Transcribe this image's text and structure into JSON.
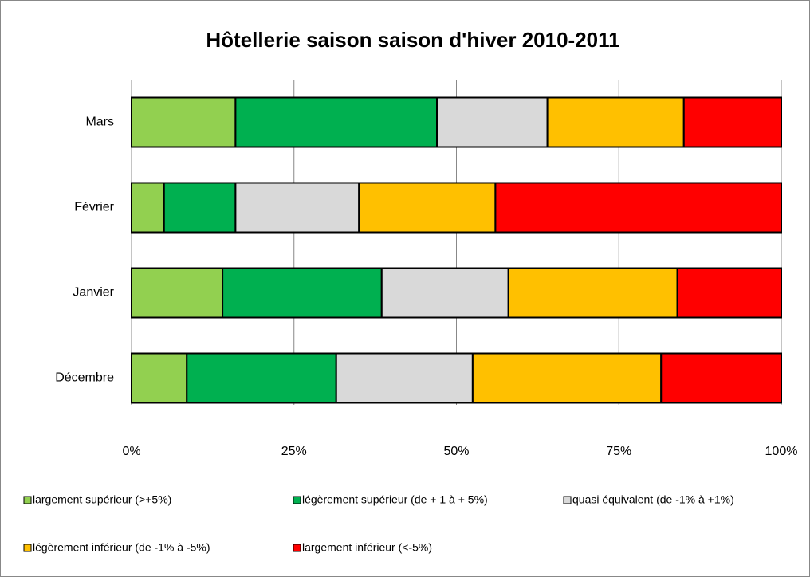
{
  "chart_data": {
    "type": "stacked-horizontal-bar",
    "title": "Hôtellerie saison saison d'hiver 2010-2011",
    "categories": [
      "Mars",
      "Février",
      "Janvier",
      "Décembre"
    ],
    "series": [
      {
        "name": "largement supérieur (>+5%)",
        "color": "#92d050",
        "values": [
          16,
          5,
          14,
          8.5
        ]
      },
      {
        "name": "légèrement supérieur (de + 1 à + 5%)",
        "color": "#00b050",
        "values": [
          31,
          11,
          24.5,
          23
        ]
      },
      {
        "name": "quasi équivalent (de  -1% à +1%)",
        "color": "#d9d9d9",
        "values": [
          17,
          19,
          19.5,
          21
        ]
      },
      {
        "name": "légèrement inférieur (de -1% à -5%)",
        "color": "#ffc000",
        "values": [
          21,
          21,
          26,
          29
        ]
      },
      {
        "name": "largement inférieur (<-5%)",
        "color": "#ff0000",
        "values": [
          15,
          44,
          16,
          18.5
        ]
      }
    ],
    "xlim": [
      0,
      100
    ],
    "xticks": [
      {
        "value": 0,
        "label": "0%"
      },
      {
        "value": 25,
        "label": "25%"
      },
      {
        "value": 50,
        "label": "50%"
      },
      {
        "value": 75,
        "label": "75%"
      },
      {
        "value": 100,
        "label": "100%"
      }
    ],
    "grid": true
  }
}
